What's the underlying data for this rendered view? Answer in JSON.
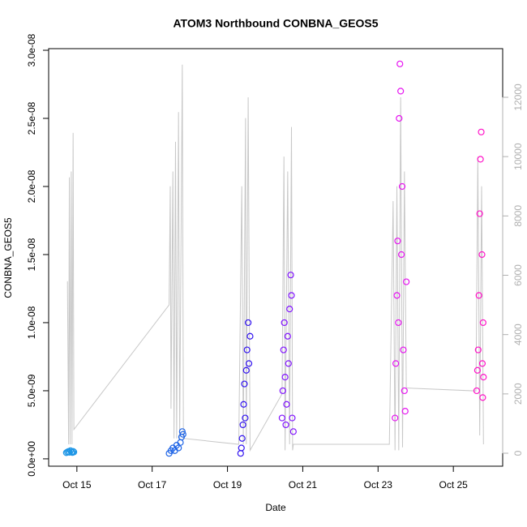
{
  "chart_data": {
    "type": "scatter",
    "title": "ATOM3 Northbound CONBNA_GEOS5",
    "x_label": "Date",
    "y_label": "CONBNA_GEOS5",
    "xlim": [
      14.25,
      26.31
    ],
    "xticks": [
      {
        "value": 15,
        "label": "Oct 15"
      },
      {
        "value": 17,
        "label": "Oct 17"
      },
      {
        "value": 19,
        "label": "Oct 19"
      },
      {
        "value": 21,
        "label": "Oct 21"
      },
      {
        "value": 23,
        "label": "Oct 23"
      },
      {
        "value": 25,
        "label": "Oct 25"
      }
    ],
    "ylim": [
      -5.4e-10,
      3.012e-08
    ],
    "yticks": [
      {
        "value": 0,
        "label": "0.0e+00"
      },
      {
        "value": 5e-09,
        "label": "5.0e-09"
      },
      {
        "value": 1e-08,
        "label": "1.0e-08"
      },
      {
        "value": 1.5e-08,
        "label": "1.5e-08"
      },
      {
        "value": 2e-08,
        "label": "2.0e-08"
      },
      {
        "value": 2.5e-08,
        "label": "2.5e-08"
      },
      {
        "value": 3e-08,
        "label": "3.0e-08"
      }
    ],
    "y2lim": [
      -437,
      13640
    ],
    "y2ticks": [
      0,
      2000,
      4000,
      6000,
      8000,
      10000,
      12000
    ],
    "series": [
      {
        "type": "line",
        "axis": "y2",
        "color": "#c8c8c8",
        "x": [
          14.75,
          14.78,
          14.8,
          14.82,
          14.85,
          14.87,
          14.9,
          14.92,
          17.45,
          17.48,
          17.5,
          17.55,
          17.58,
          17.62,
          17.65,
          17.7,
          17.73,
          17.8,
          17.83,
          19.3,
          19.38,
          19.42,
          19.48,
          19.5,
          19.55,
          19.6,
          20.45,
          20.5,
          20.53,
          20.6,
          20.65,
          20.7,
          20.73,
          20.75,
          23.3,
          23.4,
          23.45,
          23.5,
          23.55,
          23.6,
          23.65,
          23.7,
          23.75,
          25.6,
          25.65,
          25.7,
          25.75,
          25.8
        ],
        "values": [
          5800,
          300,
          9300,
          300,
          9500,
          300,
          10800,
          800,
          5000,
          9000,
          1500,
          9500,
          500,
          10500,
          500,
          11500,
          500,
          13100,
          500,
          300,
          9000,
          300,
          11300,
          300,
          12000,
          100,
          2000,
          10000,
          100,
          9500,
          300,
          11000,
          100,
          300,
          300,
          8500,
          100,
          9000,
          100,
          12000,
          200,
          9500,
          2200,
          2100,
          10000,
          600,
          9000,
          300
        ]
      },
      {
        "color": "#1e96e6",
        "x": [
          14.72,
          14.75,
          14.78,
          14.8,
          14.83,
          14.86,
          14.88,
          14.9,
          14.92
        ],
        "values": [
          4.5e-10,
          5e-10,
          5.5e-10,
          4.8e-10,
          6e-10,
          5e-10,
          4.6e-10,
          5.5e-10,
          5e-10
        ]
      },
      {
        "color": "#1e64e6",
        "x": [
          17.45,
          17.5,
          17.55,
          17.6,
          17.65,
          17.7,
          17.75,
          17.78,
          17.8,
          17.82
        ],
        "values": [
          4e-10,
          6e-10,
          8e-10,
          6e-10,
          1e-09,
          8e-10,
          1.2e-09,
          1.6e-09,
          2e-09,
          1.8e-09
        ]
      },
      {
        "color": "#3214f0",
        "x": [
          19.35,
          19.37,
          19.39,
          19.41,
          19.43,
          19.45,
          19.47,
          19.5,
          19.52,
          19.55,
          19.57,
          19.6
        ],
        "values": [
          4e-10,
          8e-10,
          1.5e-09,
          2.5e-09,
          4e-09,
          5.5e-09,
          3e-09,
          6.5e-09,
          8e-09,
          1e-08,
          7e-09,
          9e-09
        ]
      },
      {
        "color": "#8214ff",
        "x": [
          20.45,
          20.47,
          20.49,
          20.51,
          20.53,
          20.55,
          20.57,
          20.6,
          20.62,
          20.65,
          20.68,
          20.7,
          20.72,
          20.75
        ],
        "values": [
          3e-09,
          5e-09,
          8e-09,
          1e-08,
          6e-09,
          2.5e-09,
          4e-09,
          9e-09,
          7e-09,
          1.1e-08,
          1.35e-08,
          1.2e-08,
          3e-09,
          2e-09
        ]
      },
      {
        "color": "#e614f0",
        "x": [
          23.45,
          23.47,
          23.5,
          23.52,
          23.54,
          23.56,
          23.58,
          23.6,
          23.62,
          23.64,
          23.67,
          23.7,
          23.72,
          23.75
        ],
        "values": [
          3e-09,
          7e-09,
          1.2e-08,
          1.6e-08,
          1e-08,
          2.5e-08,
          2.9e-08,
          2.7e-08,
          1.5e-08,
          2e-08,
          8e-09,
          5e-09,
          3.5e-09,
          1.3e-08
        ]
      },
      {
        "color": "#ff14c8",
        "x": [
          25.62,
          25.64,
          25.66,
          25.68,
          25.7,
          25.72,
          25.74,
          25.76,
          25.77,
          25.78,
          25.79,
          25.8
        ],
        "values": [
          5e-09,
          6.5e-09,
          8e-09,
          1.2e-08,
          1.8e-08,
          2.2e-08,
          2.4e-08,
          1.5e-08,
          7e-09,
          4.5e-09,
          1e-08,
          6e-09
        ]
      }
    ]
  }
}
